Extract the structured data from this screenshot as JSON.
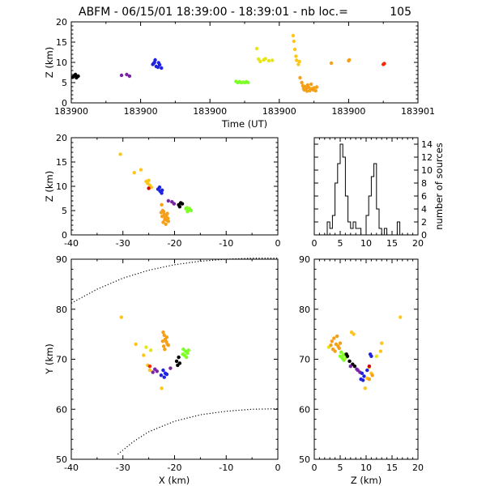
{
  "title": "ABFM - 06/15/01 18:39:00 - 18:39:01 - nb loc.=",
  "count": "105",
  "colors": {
    "black": "#000000",
    "purple": "#7a22a8",
    "blue": "#1f22e0",
    "green": "#7fff2a",
    "yellow": "#e6e617",
    "amber": "#ffc61a",
    "orange": "#f5a017",
    "red": "#ff2600",
    "dark_red": "#c80000"
  },
  "chart_data": [
    {
      "type": "scatter",
      "id": "time-height",
      "xlabel": "Time (UT)",
      "ylabel": "Z (km)",
      "ylim": [
        0,
        20
      ],
      "y_ticks": [
        "0",
        "5",
        "10",
        "15",
        "20"
      ],
      "x_ticks": [
        "183900",
        "183900",
        "183900",
        "183900",
        "183900",
        "183901"
      ],
      "x_range_seconds": [
        0,
        1
      ],
      "groups": [
        {
          "color": "black",
          "points": [
            [
              0.005,
              6.4
            ],
            [
              0.01,
              6.8
            ],
            [
              0.015,
              6.2
            ],
            [
              0.02,
              6.6
            ],
            [
              0.012,
              7.0
            ]
          ]
        },
        {
          "color": "purple",
          "points": [
            [
              0.145,
              6.8
            ],
            [
              0.16,
              7.0
            ],
            [
              0.168,
              6.6
            ]
          ]
        },
        {
          "color": "blue",
          "points": [
            [
              0.235,
              9.5
            ],
            [
              0.24,
              10.0
            ],
            [
              0.245,
              9.0
            ],
            [
              0.25,
              8.8
            ],
            [
              0.255,
              9.4
            ],
            [
              0.26,
              8.6
            ],
            [
              0.242,
              10.6
            ],
            [
              0.238,
              9.8
            ],
            [
              0.252,
              9.9
            ]
          ]
        },
        {
          "color": "green",
          "points": [
            [
              0.475,
              5.3
            ],
            [
              0.48,
              5.0
            ],
            [
              0.485,
              5.2
            ],
            [
              0.49,
              5.0
            ],
            [
              0.495,
              5.1
            ],
            [
              0.5,
              5.0
            ],
            [
              0.505,
              5.2
            ],
            [
              0.51,
              5.0
            ]
          ]
        },
        {
          "color": "yellow",
          "points": [
            [
              0.535,
              13.4
            ],
            [
              0.54,
              10.8
            ],
            [
              0.545,
              10.2
            ],
            [
              0.555,
              10.6
            ],
            [
              0.56,
              10.9
            ],
            [
              0.57,
              10.4
            ],
            [
              0.58,
              10.5
            ]
          ]
        },
        {
          "color": "amber",
          "points": [
            [
              0.64,
              16.6
            ],
            [
              0.642,
              15.2
            ],
            [
              0.645,
              13.2
            ],
            [
              0.648,
              11.5
            ],
            [
              0.65,
              10.5
            ],
            [
              0.655,
              9.5
            ],
            [
              0.658,
              10.2
            ]
          ]
        },
        {
          "color": "orange",
          "points": [
            [
              0.66,
              6.2
            ],
            [
              0.665,
              5.0
            ],
            [
              0.668,
              4.2
            ],
            [
              0.67,
              3.5
            ],
            [
              0.672,
              3.2
            ],
            [
              0.675,
              4.0
            ],
            [
              0.678,
              3.6
            ],
            [
              0.68,
              2.9
            ],
            [
              0.682,
              4.4
            ],
            [
              0.685,
              3.8
            ],
            [
              0.688,
              3.0
            ],
            [
              0.69,
              3.4
            ],
            [
              0.692,
              4.6
            ],
            [
              0.695,
              3.5
            ],
            [
              0.698,
              3.2
            ],
            [
              0.7,
              3.7
            ],
            [
              0.705,
              3.0
            ],
            [
              0.708,
              3.9
            ]
          ]
        },
        {
          "color": "orange",
          "points": [
            [
              0.75,
              9.8
            ],
            [
              0.8,
              10.4
            ],
            [
              0.802,
              10.6
            ]
          ]
        },
        {
          "color": "red",
          "points": [
            [
              0.9,
              9.5
            ],
            [
              0.903,
              9.7
            ]
          ]
        }
      ]
    },
    {
      "type": "scatter",
      "id": "x-height",
      "xlabel": "",
      "ylabel": "Z (km)",
      "xlim": [
        -40,
        0
      ],
      "ylim": [
        0,
        20
      ],
      "x_ticks": [
        "-40",
        "-30",
        "-20",
        "-10",
        "0"
      ],
      "y_ticks": [
        "0",
        "5",
        "10",
        "15",
        "20"
      ],
      "groups": [
        {
          "color": "amber",
          "points": [
            [
              -30.5,
              16.6
            ],
            [
              -27.8,
              12.8
            ],
            [
              -26.5,
              13.4
            ],
            [
              -25.5,
              11.0
            ],
            [
              -25.2,
              10.6
            ],
            [
              -24.8,
              10.2
            ],
            [
              -24.5,
              9.8
            ],
            [
              -25.0,
              11.2
            ]
          ]
        },
        {
          "color": "dark_red",
          "points": [
            [
              -25.0,
              9.6
            ]
          ]
        },
        {
          "color": "blue",
          "points": [
            [
              -23.2,
              9.4
            ],
            [
              -22.8,
              9.0
            ],
            [
              -22.5,
              8.6
            ],
            [
              -22.9,
              9.8
            ],
            [
              -22.4,
              9.2
            ]
          ]
        },
        {
          "color": "purple",
          "points": [
            [
              -20.5,
              6.8
            ],
            [
              -21.2,
              7.0
            ],
            [
              -20.1,
              6.4
            ]
          ]
        },
        {
          "color": "black",
          "points": [
            [
              -19.2,
              6.2
            ],
            [
              -18.8,
              6.6
            ],
            [
              -19.0,
              5.8
            ],
            [
              -18.5,
              6.4
            ]
          ]
        },
        {
          "color": "green",
          "points": [
            [
              -17.8,
              5.4
            ],
            [
              -17.4,
              5.0
            ],
            [
              -17.0,
              5.2
            ],
            [
              -17.5,
              4.8
            ],
            [
              -17.1,
              5.4
            ],
            [
              -16.8,
              5.0
            ],
            [
              -17.6,
              5.6
            ]
          ]
        },
        {
          "color": "orange",
          "points": [
            [
              -22.5,
              6.2
            ],
            [
              -22.3,
              5.0
            ],
            [
              -22.0,
              4.2
            ],
            [
              -21.8,
              3.6
            ],
            [
              -21.5,
              3.0
            ],
            [
              -21.2,
              2.8
            ],
            [
              -22.1,
              4.8
            ],
            [
              -21.6,
              4.0
            ],
            [
              -21.3,
              3.4
            ],
            [
              -22.4,
              3.8
            ],
            [
              -21.9,
              3.2
            ],
            [
              -21.4,
              4.4
            ],
            [
              -22.2,
              2.6
            ],
            [
              -21.7,
              2.2
            ],
            [
              -22.6,
              4.6
            ]
          ]
        }
      ]
    },
    {
      "type": "bar",
      "id": "height-histogram",
      "xlabel": "",
      "ylabel": "number of sources",
      "xlim": [
        0,
        20
      ],
      "ylim": [
        0,
        15
      ],
      "x_ticks": [
        "0",
        "5",
        "10",
        "15",
        "20"
      ],
      "y_ticks": [
        "0",
        "2",
        "4",
        "6",
        "8",
        "10",
        "12",
        "14"
      ],
      "bin_width": 0.5,
      "values": [
        0,
        0,
        0,
        0,
        0,
        2,
        1,
        3,
        8,
        11,
        14,
        12,
        6,
        2,
        1,
        2,
        1,
        1,
        0,
        0,
        3,
        6,
        9,
        11,
        4,
        1,
        0,
        1,
        0,
        0,
        0,
        0,
        2,
        0,
        0,
        0,
        0,
        0,
        0,
        0
      ]
    },
    {
      "type": "scatter",
      "id": "plan-view",
      "xlabel": "X (km)",
      "ylabel": "Y (km)",
      "xlim": [
        -40,
        0
      ],
      "ylim": [
        50,
        90
      ],
      "x_ticks": [
        "-40",
        "-30",
        "-20",
        "-10",
        "0"
      ],
      "y_ticks": [
        "50",
        "60",
        "70",
        "80",
        "90"
      ],
      "boundary_curves": [
        [
          [
            -40,
            81.2
          ],
          [
            -35,
            84.0
          ],
          [
            -30,
            86.2
          ],
          [
            -25,
            87.8
          ],
          [
            -20,
            88.9
          ],
          [
            -15,
            89.6
          ],
          [
            -10,
            90.0
          ],
          [
            -5,
            90.2
          ],
          [
            0,
            90.2
          ]
        ],
        [
          [
            -31,
            51.0
          ],
          [
            -28,
            53.5
          ],
          [
            -25,
            55.5
          ],
          [
            -20,
            57.6
          ],
          [
            -15,
            58.9
          ],
          [
            -10,
            59.6
          ],
          [
            -5,
            60.0
          ],
          [
            0,
            60.1
          ]
        ]
      ],
      "groups": [
        {
          "color": "amber",
          "points": [
            [
              -30.3,
              78.4
            ],
            [
              -27.5,
              73.0
            ],
            [
              -26.0,
              70.8
            ],
            [
              -22.5,
              64.2
            ],
            [
              -25.2,
              68.8
            ],
            [
              -24.8,
              67.8
            ]
          ]
        },
        {
          "color": "yellow",
          "points": [
            [
              -25.5,
              72.4
            ],
            [
              -24.6,
              71.8
            ]
          ]
        },
        {
          "color": "orange",
          "points": [
            [
              -22.2,
              75.4
            ],
            [
              -22.0,
              74.8
            ],
            [
              -21.8,
              74.0
            ],
            [
              -21.6,
              73.5
            ],
            [
              -21.4,
              73.0
            ],
            [
              -22.1,
              72.6
            ],
            [
              -21.9,
              72.0
            ],
            [
              -22.3,
              73.6
            ],
            [
              -21.5,
              74.4
            ],
            [
              -21.2,
              72.8
            ]
          ]
        },
        {
          "color": "green",
          "points": [
            [
              -18.3,
              72.0
            ],
            [
              -17.9,
              71.6
            ],
            [
              -17.5,
              71.2
            ],
            [
              -18.1,
              70.8
            ],
            [
              -17.7,
              70.4
            ],
            [
              -17.3,
              71.8
            ],
            [
              -18.4,
              71.0
            ]
          ]
        },
        {
          "color": "black",
          "points": [
            [
              -19.2,
              70.4
            ],
            [
              -19.6,
              69.6
            ],
            [
              -19.0,
              69.2
            ],
            [
              -19.4,
              68.8
            ]
          ]
        },
        {
          "color": "red",
          "points": [
            [
              -24.8,
              68.6
            ]
          ]
        },
        {
          "color": "purple",
          "points": [
            [
              -23.8,
              68.0
            ],
            [
              -23.4,
              67.6
            ],
            [
              -20.8,
              68.2
            ],
            [
              -24.2,
              67.4
            ]
          ]
        },
        {
          "color": "blue",
          "points": [
            [
              -22.2,
              67.8
            ],
            [
              -21.8,
              67.2
            ],
            [
              -22.6,
              66.8
            ],
            [
              -22.0,
              66.4
            ],
            [
              -21.5,
              67.0
            ]
          ]
        }
      ]
    },
    {
      "type": "scatter",
      "id": "height-y",
      "xlabel": "Z (km)",
      "ylabel": "",
      "xlim": [
        0,
        20
      ],
      "ylim": [
        50,
        90
      ],
      "x_ticks": [
        "0",
        "5",
        "10",
        "15",
        "20"
      ],
      "y_ticks": [
        "50",
        "60",
        "70",
        "80",
        "90"
      ],
      "groups": [
        {
          "color": "amber",
          "points": [
            [
              16.6,
              78.4
            ],
            [
              13.0,
              73.2
            ],
            [
              12.8,
              71.6
            ],
            [
              7.2,
              75.4
            ],
            [
              7.6,
              75.0
            ],
            [
              10.6,
              68.4
            ],
            [
              11.0,
              67.2
            ],
            [
              9.8,
              64.2
            ],
            [
              10.2,
              66.2
            ]
          ]
        },
        {
          "color": "yellow",
          "points": [
            [
              2.8,
              72.4
            ],
            [
              5.8,
              70.0
            ],
            [
              12.0,
              70.6
            ]
          ]
        },
        {
          "color": "orange",
          "points": [
            [
              3.4,
              73.6
            ],
            [
              3.8,
              74.2
            ],
            [
              4.2,
              73.0
            ],
            [
              4.6,
              72.6
            ],
            [
              3.6,
              72.0
            ],
            [
              4.0,
              71.6
            ],
            [
              4.4,
              74.6
            ],
            [
              5.0,
              73.2
            ],
            [
              3.2,
              72.8
            ],
            [
              4.8,
              72.2
            ],
            [
              5.2,
              71.4
            ],
            [
              11.2,
              66.8
            ],
            [
              10.6,
              66.0
            ]
          ]
        },
        {
          "color": "green",
          "points": [
            [
              5.2,
              71.4
            ],
            [
              5.6,
              70.8
            ],
            [
              5.4,
              70.2
            ],
            [
              5.9,
              71.0
            ],
            [
              5.0,
              70.6
            ],
            [
              6.2,
              70.4
            ],
            [
              5.7,
              69.8
            ]
          ]
        },
        {
          "color": "black",
          "points": [
            [
              6.4,
              70.6
            ],
            [
              6.8,
              69.6
            ],
            [
              7.4,
              69.0
            ],
            [
              6.2,
              71.0
            ],
            [
              7.8,
              68.6
            ]
          ]
        },
        {
          "color": "purple",
          "points": [
            [
              7.0,
              68.6
            ],
            [
              8.2,
              68.0
            ],
            [
              8.8,
              67.4
            ],
            [
              8.4,
              67.8
            ]
          ]
        },
        {
          "color": "blue",
          "points": [
            [
              9.2,
              67.2
            ],
            [
              9.6,
              66.6
            ],
            [
              9.0,
              66.0
            ],
            [
              9.4,
              65.8
            ],
            [
              10.2,
              67.8
            ],
            [
              10.8,
              71.0
            ],
            [
              11.0,
              70.6
            ]
          ]
        },
        {
          "color": "dark_red",
          "points": [
            [
              10.6,
              68.6
            ]
          ]
        }
      ]
    }
  ]
}
